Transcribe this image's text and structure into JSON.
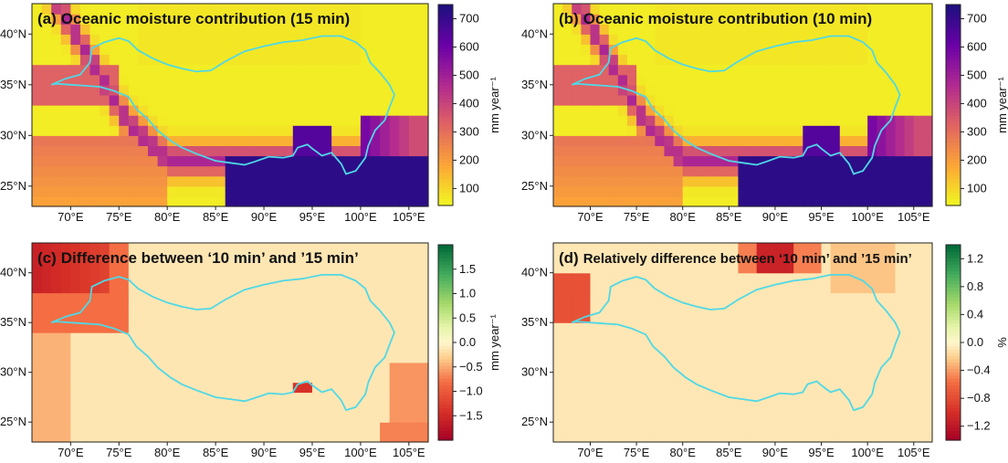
{
  "chart_data": [
    {
      "type": "heatmap",
      "panel_label": "(a)",
      "title": "Oceanic moisture contribution (15 min)",
      "colormap": "plasma_r",
      "colorbar": {
        "label": "mm year⁻¹",
        "vmin": 40,
        "vmax": 750,
        "ticks": [
          100,
          200,
          300,
          400,
          500,
          600,
          700
        ],
        "tick_labels": [
          "100",
          "200",
          "300",
          "400",
          "500",
          "600",
          "700"
        ]
      },
      "x_ticks": [
        70,
        75,
        80,
        85,
        90,
        95,
        100,
        105
      ],
      "x_tick_labels": [
        "70°E",
        "75°E",
        "80°E",
        "85°E",
        "90°E",
        "95°E",
        "100°E",
        "105°E"
      ],
      "y_ticks": [
        25,
        30,
        35,
        40
      ],
      "y_tick_labels": [
        "25°N",
        "30°N",
        "35°N",
        "40°N"
      ],
      "xlim": [
        66,
        107
      ],
      "ylim": [
        23,
        43
      ],
      "field": "moisture"
    },
    {
      "type": "heatmap",
      "panel_label": "(b)",
      "title": "Oceanic moisture contribution (10 min)",
      "colormap": "plasma_r",
      "colorbar": {
        "label": "mm year⁻¹",
        "vmin": 40,
        "vmax": 750,
        "ticks": [
          100,
          200,
          300,
          400,
          500,
          600,
          700
        ],
        "tick_labels": [
          "100",
          "200",
          "300",
          "400",
          "500",
          "600",
          "700"
        ]
      },
      "x_ticks": [
        70,
        75,
        80,
        85,
        90,
        95,
        100,
        105
      ],
      "x_tick_labels": [
        "70°E",
        "75°E",
        "80°E",
        "85°E",
        "90°E",
        "95°E",
        "100°E",
        "105°E"
      ],
      "y_ticks": [
        25,
        30,
        35,
        40
      ],
      "y_tick_labels": [
        "25°N",
        "30°N",
        "35°N",
        "40°N"
      ],
      "xlim": [
        66,
        107
      ],
      "ylim": [
        23,
        43
      ],
      "field": "moisture"
    },
    {
      "type": "heatmap",
      "panel_label": "(c)",
      "title": "Difference between ‘10 min’ and ’15 min’",
      "colormap": "RdYlGn",
      "colorbar": {
        "label": "mm year⁻¹",
        "vmin": -2,
        "vmax": 2,
        "ticks": [
          -1.5,
          -1.0,
          -0.5,
          0.0,
          0.5,
          1.0,
          1.5
        ],
        "tick_labels": [
          "−1.5",
          "−1.0",
          "−0.5",
          "0.0",
          "0.5",
          "1.0",
          "1.5"
        ]
      },
      "x_ticks": [
        70,
        75,
        80,
        85,
        90,
        95,
        100,
        105
      ],
      "x_tick_labels": [
        "70°E",
        "75°E",
        "80°E",
        "85°E",
        "90°E",
        "95°E",
        "100°E",
        "105°E"
      ],
      "y_ticks": [
        25,
        30,
        35,
        40
      ],
      "y_tick_labels": [
        "25°N",
        "30°N",
        "35°N",
        "40°N"
      ],
      "xlim": [
        66,
        107
      ],
      "ylim": [
        23,
        43
      ],
      "field": "abs_difference"
    },
    {
      "type": "heatmap",
      "panel_label": "(d)",
      "title": "Relatively difference between ‘10 min’ and ’15 min’",
      "colormap": "RdYlGn",
      "colorbar": {
        "label": "%",
        "vmin": -1.4,
        "vmax": 1.4,
        "ticks": [
          -1.2,
          -0.8,
          -0.4,
          0.0,
          0.4,
          0.8,
          1.2
        ],
        "tick_labels": [
          "−1.2",
          "−0.8",
          "−0.4",
          "0.0",
          "0.4",
          "0.8",
          "1.2"
        ]
      },
      "x_ticks": [
        70,
        75,
        80,
        85,
        90,
        95,
        100,
        105
      ],
      "x_tick_labels": [
        "70°E",
        "75°E",
        "80°E",
        "85°E",
        "90°E",
        "95°E",
        "100°E",
        "105°E"
      ],
      "y_ticks": [
        25,
        30,
        35,
        40
      ],
      "y_tick_labels": [
        "25°N",
        "30°N",
        "35°N",
        "40°N"
      ],
      "xlim": [
        66,
        107
      ],
      "ylim": [
        23,
        43
      ],
      "field": "rel_difference"
    }
  ],
  "boundary": {
    "color": "#4fd8e6",
    "points": [
      [
        68,
        35
      ],
      [
        69.5,
        35.6
      ],
      [
        71,
        36
      ],
      [
        72,
        37.2
      ],
      [
        72.2,
        38.6
      ],
      [
        73.5,
        39.2
      ],
      [
        75,
        39.6
      ],
      [
        76,
        39.3
      ],
      [
        77,
        38.4
      ],
      [
        78.5,
        37.6
      ],
      [
        80,
        37
      ],
      [
        81.5,
        36.6
      ],
      [
        83,
        36.3
      ],
      [
        84.5,
        36.4
      ],
      [
        86,
        37.3
      ],
      [
        88,
        38.3
      ],
      [
        90,
        38.8
      ],
      [
        92,
        39.2
      ],
      [
        94,
        39.4
      ],
      [
        96,
        39.8
      ],
      [
        98,
        39.8
      ],
      [
        99.5,
        39.2
      ],
      [
        100.5,
        38.4
      ],
      [
        101,
        37.2
      ],
      [
        102,
        36.2
      ],
      [
        103,
        35
      ],
      [
        103.5,
        34
      ],
      [
        103,
        32.8
      ],
      [
        102.5,
        31.5
      ],
      [
        101.5,
        30.5
      ],
      [
        100.8,
        29
      ],
      [
        100.5,
        27.8
      ],
      [
        99.5,
        26.5
      ],
      [
        98.5,
        26.2
      ],
      [
        98,
        27.2
      ],
      [
        97,
        28.3
      ],
      [
        96,
        28
      ],
      [
        95,
        28.7
      ],
      [
        94.5,
        29.1
      ],
      [
        93.5,
        28.8
      ],
      [
        93,
        28
      ],
      [
        92,
        27.8
      ],
      [
        90.5,
        27.9
      ],
      [
        89,
        27.4
      ],
      [
        88,
        27.1
      ],
      [
        86.5,
        27.3
      ],
      [
        85,
        27.5
      ],
      [
        83,
        28.2
      ],
      [
        81.5,
        28.8
      ],
      [
        80.3,
        29.5
      ],
      [
        79,
        30.5
      ],
      [
        78,
        31.6
      ],
      [
        76.8,
        32.6
      ],
      [
        76,
        33.8
      ],
      [
        74.5,
        34.4
      ],
      [
        73,
        34.8
      ],
      [
        71.5,
        34.9
      ],
      [
        70,
        35
      ],
      [
        68.5,
        35.1
      ],
      [
        68,
        35
      ]
    ]
  }
}
